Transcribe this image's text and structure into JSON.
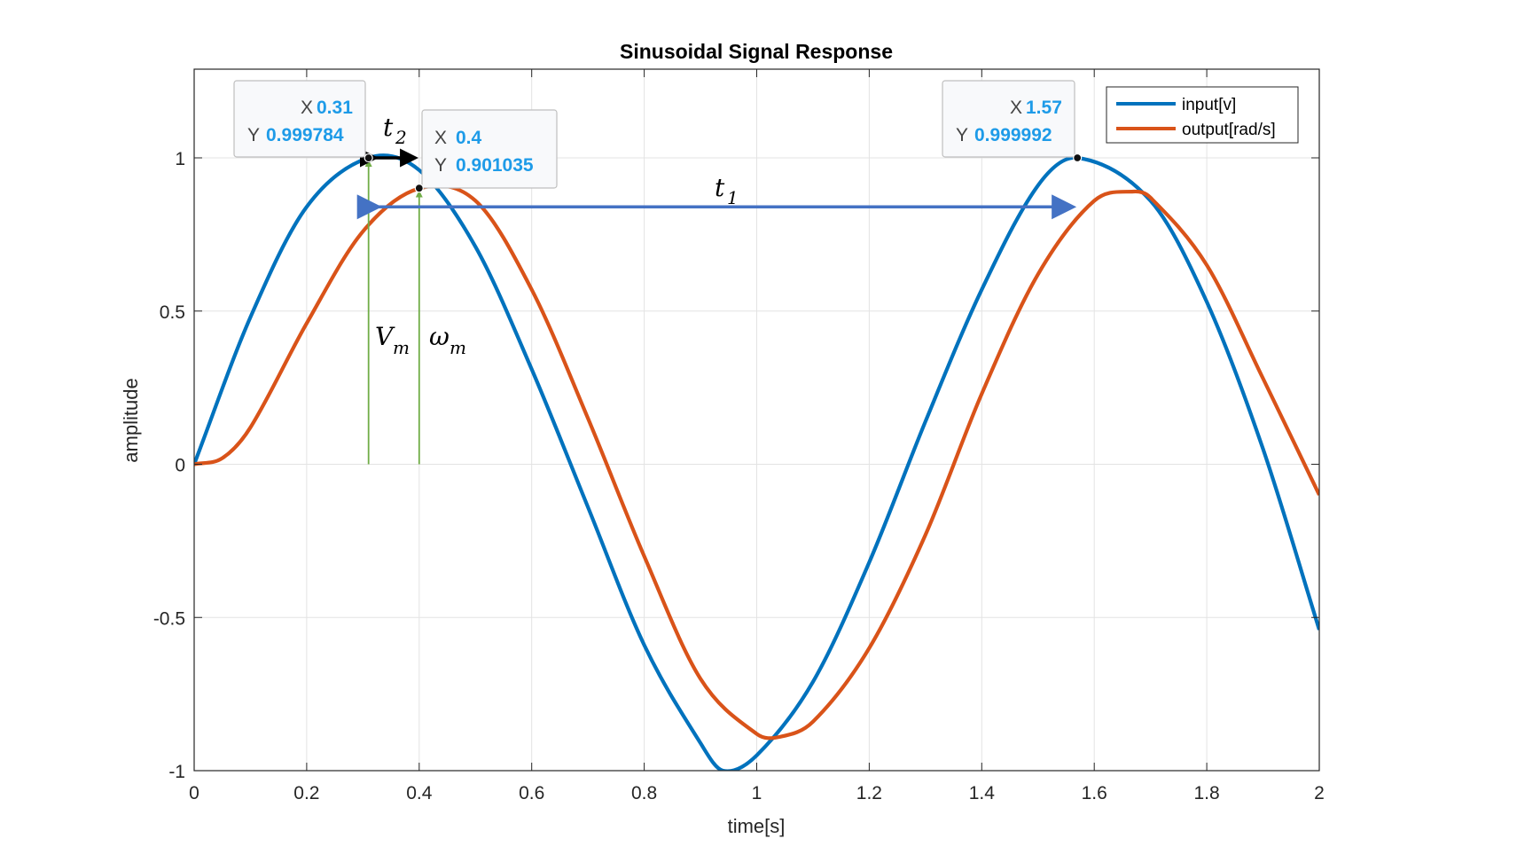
{
  "chart_data": {
    "type": "line",
    "title": "Sinusoidal Signal Response",
    "xlabel": "time[s]",
    "ylabel": "amplitude",
    "xlim": [
      0,
      2
    ],
    "ylim": [
      -1,
      1.3
    ],
    "grid": true,
    "legend_position": "top-right",
    "x_ticks": [
      "0",
      "0.2",
      "0.4",
      "0.6",
      "0.8",
      "1",
      "1.2",
      "1.4",
      "1.6",
      "1.8",
      "2"
    ],
    "y_ticks": [
      "-1",
      "-0.5",
      "0",
      "0.5",
      "1"
    ],
    "series": [
      {
        "name": "input[v]",
        "color": "#0072BD",
        "x": [
          0,
          0.1,
          0.2,
          0.31,
          0.4,
          0.5,
          0.6,
          0.7,
          0.8,
          0.9,
          0.94,
          1.0,
          1.1,
          1.2,
          1.3,
          1.4,
          1.5,
          1.57,
          1.7,
          1.8,
          1.9,
          2.0
        ],
        "y": [
          0,
          0.48,
          0.84,
          1.0,
          0.96,
          0.71,
          0.31,
          -0.14,
          -0.59,
          -0.91,
          -1.0,
          -0.95,
          -0.71,
          -0.32,
          0.14,
          0.57,
          0.91,
          1.0,
          0.86,
          0.53,
          0.05,
          -0.54
        ]
      },
      {
        "name": "output[rad/s]",
        "color": "#D95319",
        "x": [
          0,
          0.05,
          0.1,
          0.2,
          0.3,
          0.4,
          0.5,
          0.6,
          0.7,
          0.8,
          0.9,
          1.0,
          1.04,
          1.1,
          1.2,
          1.3,
          1.4,
          1.5,
          1.6,
          1.67,
          1.7,
          1.8,
          1.9,
          2.0
        ],
        "y": [
          0,
          0.02,
          0.12,
          0.46,
          0.76,
          0.9,
          0.86,
          0.57,
          0.15,
          -0.3,
          -0.7,
          -0.88,
          -0.89,
          -0.84,
          -0.6,
          -0.23,
          0.23,
          0.62,
          0.86,
          0.89,
          0.87,
          0.65,
          0.28,
          -0.1
        ]
      }
    ],
    "datatips": [
      {
        "x_key": "X",
        "x_value": "0.31",
        "y_key": "Y",
        "y_value": "0.999784",
        "x": 0.31,
        "y": 0.999784
      },
      {
        "x_key": "X",
        "x_value": "0.4",
        "y_key": "Y",
        "y_value": "0.901035",
        "x": 0.4,
        "y": 0.901035
      },
      {
        "x_key": "X",
        "x_value": "1.57",
        "y_key": "Y",
        "y_value": "0.999992",
        "x": 1.57,
        "y": 0.999992
      }
    ],
    "annotations": {
      "t1": {
        "base": "t",
        "sub": "1",
        "from_x": 0.31,
        "to_x": 1.57,
        "y": 0.84,
        "color": "#4472C4"
      },
      "t2": {
        "base": "t",
        "sub": "2",
        "from_x": 0.31,
        "to_x": 0.4,
        "y": 1.0,
        "color": "#000000"
      },
      "vm": {
        "base": "V",
        "sub": "m",
        "x": 0.31,
        "y_from": 0,
        "y_to": 1.0,
        "color": "#70AD47"
      },
      "wm": {
        "base": "ω",
        "sub": "m",
        "x": 0.4,
        "y_from": 0,
        "y_to": 0.9,
        "color": "#70AD47"
      }
    }
  }
}
